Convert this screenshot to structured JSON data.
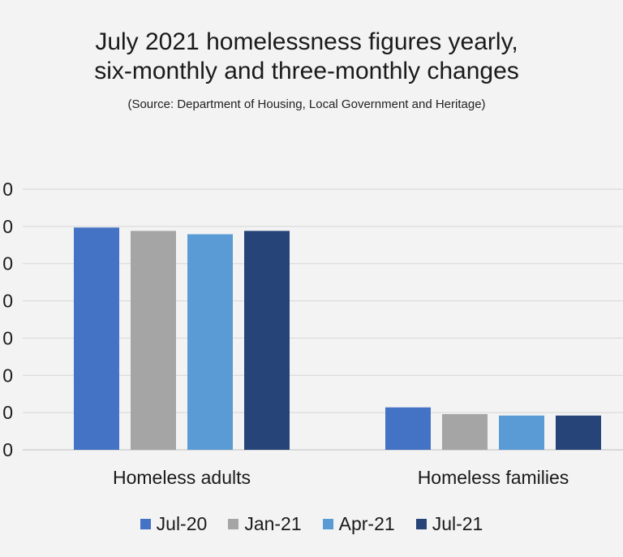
{
  "chart_data": {
    "type": "bar",
    "title": "July 2021 homelessness figures yearly, six-monthly and three-monthly changes",
    "title_lines": [
      "July 2021 homelessness figures yearly,",
      "six-monthly and three-monthly changes"
    ],
    "subtitle": "(Source: Department of Housing, Local Government and Heritage)",
    "categories": [
      "Homeless adults",
      "Homeless families"
    ],
    "series": [
      {
        "name": "Jul-20",
        "color": "#4472c4",
        "values": [
          5970,
          1140
        ]
      },
      {
        "name": "Jan-21",
        "color": "#a5a5a5",
        "values": [
          5880,
          960
        ]
      },
      {
        "name": "Apr-21",
        "color": "#5b9bd5",
        "values": [
          5790,
          920
        ]
      },
      {
        "name": "Jul-21",
        "color": "#264478",
        "values": [
          5880,
          920
        ]
      }
    ],
    "yaxis": {
      "min": 0,
      "max": 7000,
      "step": 1000,
      "tick_labels": [
        "0",
        "0",
        "0",
        "0",
        "0",
        "0",
        "0",
        "0"
      ]
    },
    "grid": true,
    "legend_position": "bottom"
  }
}
